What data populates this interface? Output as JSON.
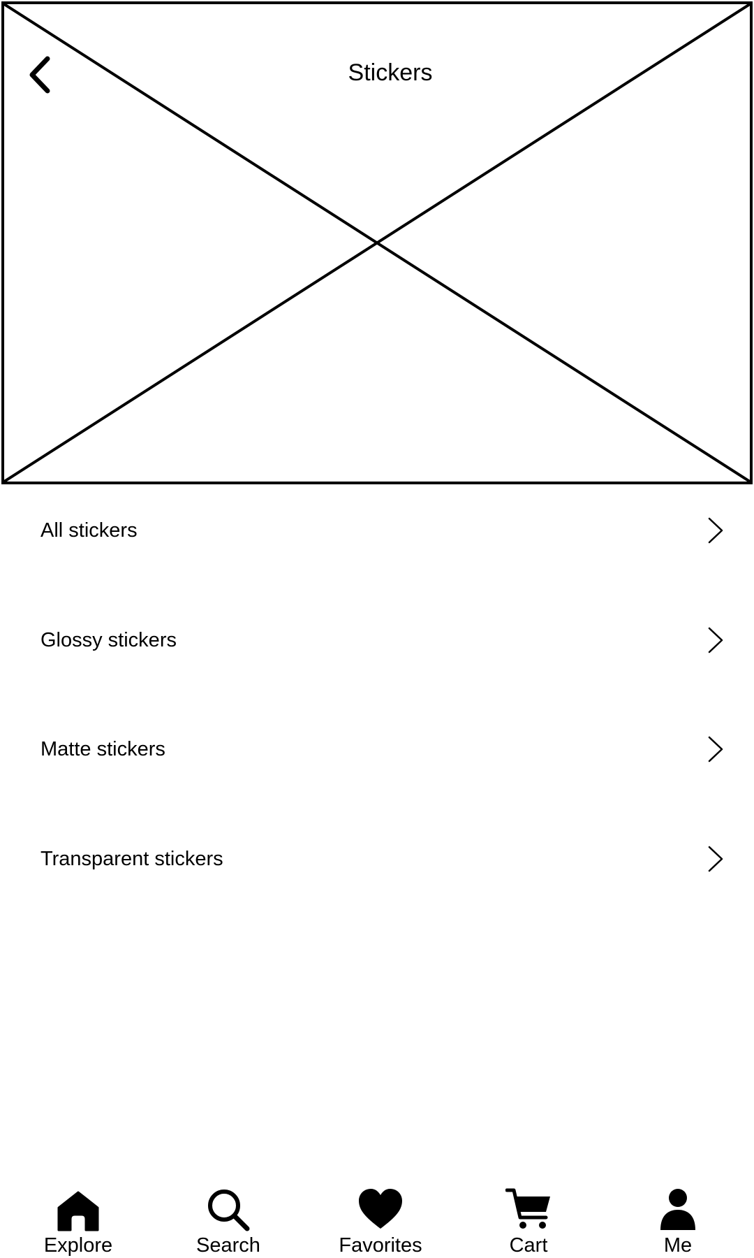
{
  "header": {
    "title": "Stickers",
    "back_icon": "chevron-left-icon"
  },
  "hero": {
    "image": "image-placeholder"
  },
  "categories": [
    {
      "label": "All stickers",
      "icon": "chevron-right-icon"
    },
    {
      "label": "Glossy stickers",
      "icon": "chevron-right-icon"
    },
    {
      "label": "Matte stickers",
      "icon": "chevron-right-icon"
    },
    {
      "label": "Transparent stickers",
      "icon": "chevron-right-icon"
    }
  ],
  "bottom_nav": {
    "items": [
      {
        "label": "Explore",
        "icon": "home-icon"
      },
      {
        "label": "Search",
        "icon": "search-icon"
      },
      {
        "label": "Favorites",
        "icon": "heart-icon"
      },
      {
        "label": "Cart",
        "icon": "cart-icon"
      },
      {
        "label": "Me",
        "icon": "person-icon"
      }
    ]
  }
}
